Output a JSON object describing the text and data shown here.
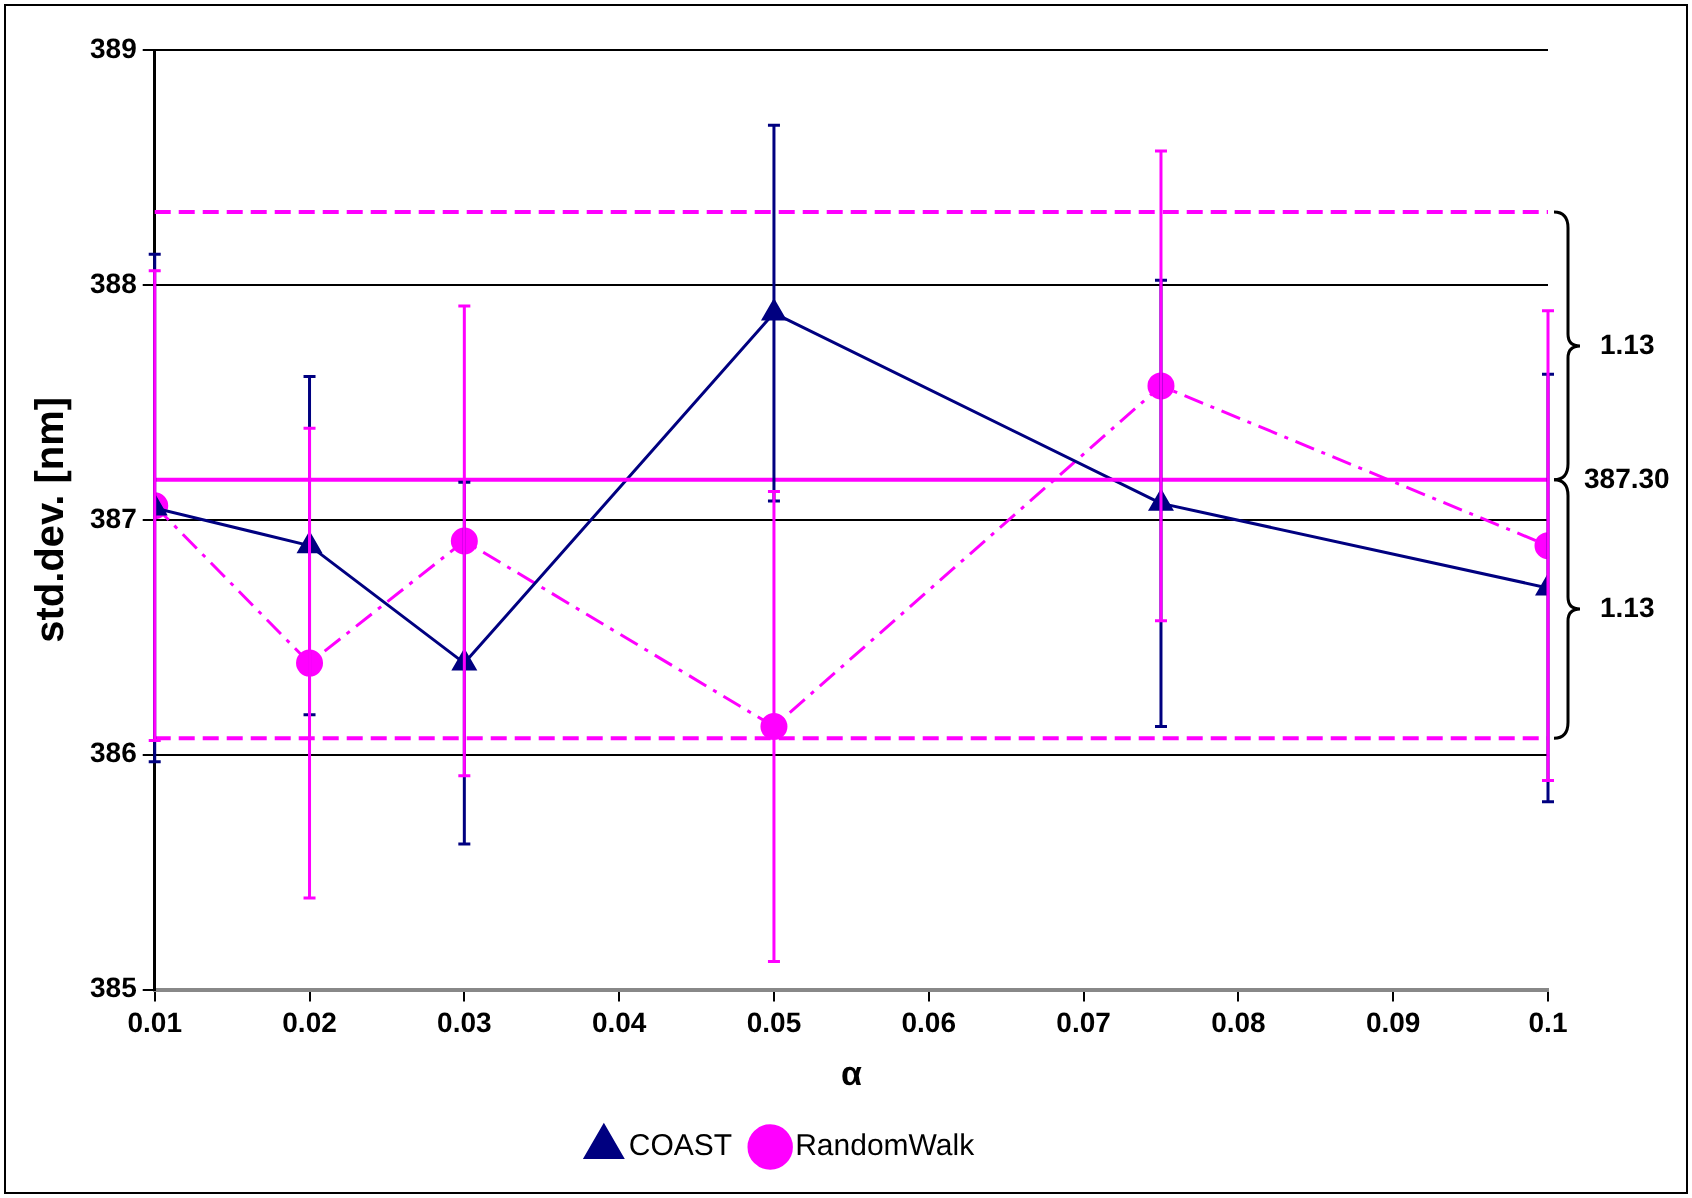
{
  "chart_data": {
    "type": "line",
    "xlabel": "α",
    "ylabel": "std.dev. [nm]",
    "x": [
      0.01,
      0.02,
      0.03,
      0.05,
      0.075,
      0.1
    ],
    "series": [
      {
        "name": "COAST",
        "color": "#000080",
        "values": [
          387.05,
          386.89,
          386.39,
          387.88,
          387.07,
          386.71
        ],
        "errors": [
          1.08,
          0.72,
          0.77,
          0.8,
          0.95,
          0.91
        ],
        "marker": "triangle",
        "line_style": "solid"
      },
      {
        "name": "RandomWalk",
        "color": "#ff00ff",
        "values": [
          387.06,
          386.39,
          386.91,
          386.12,
          387.57,
          386.89
        ],
        "errors": [
          1.0,
          1.0,
          1.0,
          1.0,
          1.0,
          1.0
        ],
        "marker": "circle",
        "line_style": "dashed"
      }
    ],
    "xlim": [
      0.01,
      0.1
    ],
    "xticks": [
      0.01,
      0.02,
      0.03,
      0.04,
      0.05,
      0.06,
      0.07,
      0.08,
      0.09,
      0.1
    ],
    "ylim": [
      385,
      389
    ],
    "yticks": [
      385,
      386,
      387,
      388,
      389
    ],
    "ref_lines": [
      {
        "axis": "y",
        "value": 388.31,
        "color": "#ff00ff",
        "line_style": "dashed"
      },
      {
        "axis": "y",
        "value": 387.17,
        "color": "#ff00ff",
        "line_style": "solid"
      },
      {
        "axis": "y",
        "value": 386.07,
        "color": "#ff00ff",
        "line_style": "dashed"
      }
    ],
    "annotations": [
      "1.13",
      "387.30",
      "1.13"
    ],
    "grid": "y",
    "legend": "bottom"
  }
}
